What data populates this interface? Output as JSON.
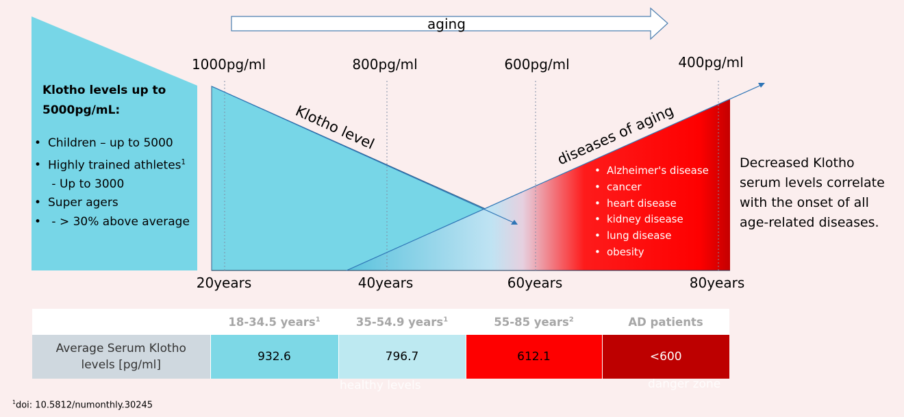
{
  "aging_arrow": {
    "label": "aging"
  },
  "concentration_ticks": [
    "1000pg/ml",
    "800pg/ml",
    "600pg/ml",
    "400pg/ml"
  ],
  "age_ticks": [
    "20years",
    "40years",
    "60years",
    "80years"
  ],
  "curve_labels": {
    "klotho": "Klotho level",
    "diseases": "diseases of aging"
  },
  "left_panel": {
    "title_line1": "Klotho levels up to",
    "title_line2": "5000pg/mL:",
    "items": [
      {
        "text": "Children – up to 5000",
        "sup": ""
      },
      {
        "text": "Highly trained athletes",
        "sup": "1"
      },
      {
        "text": " - Up to 3000",
        "sup": "",
        "bullet": false
      },
      {
        "text": "Super agers",
        "sup": ""
      },
      {
        "text": " - > 30% above average",
        "sup": ""
      }
    ]
  },
  "diseases": [
    "Alzheimer's disease",
    "cancer",
    "heart disease",
    "kidney disease",
    "lung disease",
    "obesity"
  ],
  "right_note": {
    "lines": [
      "Decreased Klotho",
      "serum levels correlate",
      "with the onset of all",
      "age-related diseases."
    ]
  },
  "table": {
    "headers": [
      {
        "text": "18-34.5 years",
        "sup": "1"
      },
      {
        "text": "35-54.9 years",
        "sup": "1"
      },
      {
        "text": "55-85 years",
        "sup": "2"
      },
      {
        "text": "AD patients",
        "sup": ""
      }
    ],
    "row_label_line1": "Average Serum Klotho",
    "row_label_line2": "levels [pg/ml]",
    "values": [
      "932.6",
      "796.7",
      "612.1",
      "<600"
    ]
  },
  "zones": {
    "healthy": "healthy levels",
    "danger": "danger zone"
  },
  "footnote": {
    "sup": "1",
    "text": "doi: 10.5812/numonthly.30245"
  },
  "colors": {
    "background": "#fbeeee",
    "klotho_cyan": "#77d6e7",
    "light_blue": "#bde9f1",
    "red": "#fe0000",
    "dark_red": "#bd0000",
    "row_label_gray": "#cfd8df"
  }
}
